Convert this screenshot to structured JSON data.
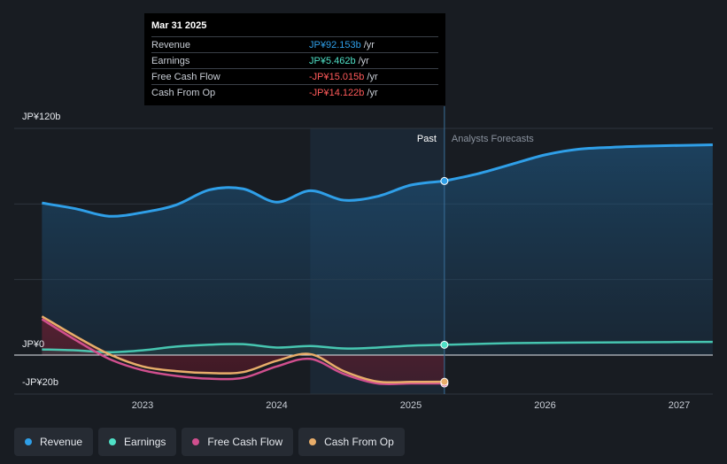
{
  "chart_data": {
    "type": "area",
    "unit": "JP¥ billions",
    "y_axis": {
      "ticks": [
        {
          "label": "JP¥120b",
          "value": 120
        },
        {
          "label": "JP¥0",
          "value": 0
        },
        {
          "label": "-JP¥20b",
          "value": -20
        }
      ],
      "ylim": [
        -20,
        120
      ]
    },
    "x_axis": {
      "ticks": [
        "2023",
        "2024",
        "2025",
        "2026",
        "2027"
      ],
      "xlim": [
        2022.2,
        2027.25
      ]
    },
    "regions": {
      "past_label": "Past",
      "forecast_label": "Analysts Forecasts",
      "divider_x": 2025.25,
      "highlight_start_x": 2024.25
    },
    "series": [
      {
        "name": "Revenue",
        "color": "#2f9fe8",
        "points": [
          [
            2022.25,
            80.5
          ],
          [
            2022.5,
            77.5
          ],
          [
            2022.75,
            73.5
          ],
          [
            2023.0,
            75.5
          ],
          [
            2023.25,
            79.5
          ],
          [
            2023.5,
            87.5
          ],
          [
            2023.75,
            88.0
          ],
          [
            2024.0,
            81.0
          ],
          [
            2024.25,
            87.0
          ],
          [
            2024.5,
            82.0
          ],
          [
            2024.75,
            84.0
          ],
          [
            2025.0,
            90.0
          ],
          [
            2025.25,
            92.153
          ]
        ],
        "forecast": [
          [
            2025.25,
            92.153
          ],
          [
            2025.5,
            96.0
          ],
          [
            2025.75,
            101.0
          ],
          [
            2026.0,
            106.0
          ],
          [
            2026.25,
            109.0
          ],
          [
            2026.5,
            110.0
          ],
          [
            2026.75,
            110.6
          ],
          [
            2027.0,
            111.0
          ],
          [
            2027.25,
            111.3
          ]
        ]
      },
      {
        "name": "Earnings",
        "color": "#4fe0c6",
        "points": [
          [
            2022.25,
            3.0
          ],
          [
            2022.5,
            2.5
          ],
          [
            2022.75,
            1.5
          ],
          [
            2023.0,
            2.5
          ],
          [
            2023.25,
            4.5
          ],
          [
            2023.5,
            5.5
          ],
          [
            2023.75,
            5.8
          ],
          [
            2024.0,
            4.0
          ],
          [
            2024.25,
            4.8
          ],
          [
            2024.5,
            3.5
          ],
          [
            2024.75,
            4.0
          ],
          [
            2025.0,
            5.0
          ],
          [
            2025.25,
            5.462
          ]
        ],
        "forecast": [
          [
            2025.25,
            5.462
          ],
          [
            2025.75,
            6.3
          ],
          [
            2026.25,
            6.6
          ],
          [
            2026.75,
            6.8
          ],
          [
            2027.25,
            7.0
          ]
        ]
      },
      {
        "name": "Free Cash Flow",
        "color": "#d04f8e",
        "points": [
          [
            2022.25,
            19.0
          ],
          [
            2022.5,
            8.0
          ],
          [
            2022.75,
            -2.0
          ],
          [
            2023.0,
            -8.0
          ],
          [
            2023.25,
            -11.0
          ],
          [
            2023.5,
            -12.5
          ],
          [
            2023.75,
            -12.0
          ],
          [
            2024.0,
            -6.0
          ],
          [
            2024.25,
            -2.0
          ],
          [
            2024.5,
            -10.0
          ],
          [
            2024.75,
            -15.0
          ],
          [
            2025.0,
            -15.0
          ],
          [
            2025.25,
            -15.015
          ]
        ]
      },
      {
        "name": "Cash From Op",
        "color": "#e8ad6a",
        "points": [
          [
            2022.25,
            20.5
          ],
          [
            2022.5,
            10.0
          ],
          [
            2022.75,
            0.5
          ],
          [
            2023.0,
            -6.0
          ],
          [
            2023.25,
            -8.5
          ],
          [
            2023.5,
            -9.5
          ],
          [
            2023.75,
            -9.0
          ],
          [
            2024.0,
            -3.0
          ],
          [
            2024.25,
            0.5
          ],
          [
            2024.5,
            -8.5
          ],
          [
            2024.75,
            -14.0
          ],
          [
            2025.0,
            -14.2
          ],
          [
            2025.25,
            -14.122
          ]
        ]
      }
    ]
  },
  "tooltip": {
    "date": "Mar 31 2025",
    "rows": [
      {
        "label": "Revenue",
        "value": "JP¥92.153b",
        "unit": "/yr",
        "color": "#2f9fe8"
      },
      {
        "label": "Earnings",
        "value": "JP¥5.462b",
        "unit": "/yr",
        "color": "#4fe0c6"
      },
      {
        "label": "Free Cash Flow",
        "value": "-JP¥15.015b",
        "unit": "/yr",
        "color": "#ff5a5a"
      },
      {
        "label": "Cash From Op",
        "value": "-JP¥14.122b",
        "unit": "/yr",
        "color": "#ff5a5a"
      }
    ]
  },
  "legend": [
    {
      "label": "Revenue",
      "color": "#2f9fe8"
    },
    {
      "label": "Earnings",
      "color": "#4fe0c6"
    },
    {
      "label": "Free Cash Flow",
      "color": "#d04f8e"
    },
    {
      "label": "Cash From Op",
      "color": "#e8ad6a"
    }
  ]
}
